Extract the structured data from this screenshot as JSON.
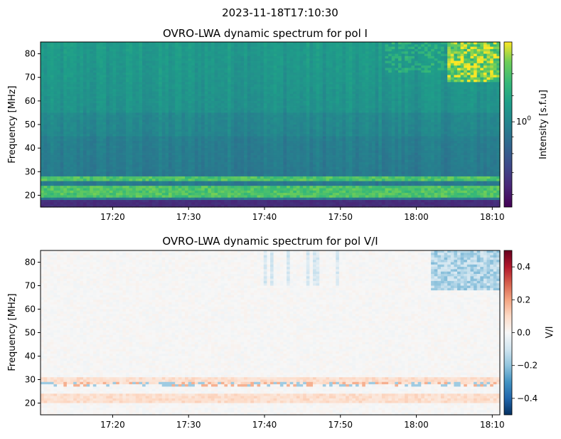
{
  "suptitle": "2023-11-18T17:10:30",
  "chart_data": [
    {
      "type": "heatmap",
      "title": "OVRO-LWA dynamic spectrum for pol I",
      "xlabel": "",
      "ylabel": "Frequency [MHz]",
      "x_ticks": [
        "17:20",
        "17:30",
        "17:40",
        "17:50",
        "18:00",
        "18:10"
      ],
      "x_tick_minutes": [
        20,
        30,
        40,
        50,
        60,
        70
      ],
      "xlim_minutes": [
        10.5,
        71.0
      ],
      "x_origin": "17:00",
      "y_ticks": [
        20,
        30,
        40,
        50,
        60,
        70,
        80
      ],
      "ylim": [
        15,
        85
      ],
      "colormap": "viridis",
      "colorbar": {
        "label": "Intensity [s.f.u]",
        "scale": "log",
        "ticks": [
          "10^0"
        ],
        "tick_value": 1.0,
        "range": [
          0.55,
          1.75
        ]
      },
      "features": {
        "bright_bands_mhz": [
          [
            19.5,
            21.5
          ],
          [
            22,
            24
          ],
          [
            26,
            28
          ]
        ],
        "dark_band_mhz": [
          15,
          18
        ],
        "background_level": 1.0,
        "bright_region": {
          "from_minutes": 64,
          "to_minutes": 71,
          "above_mhz": 68
        }
      }
    },
    {
      "type": "heatmap",
      "title": "OVRO-LWA dynamic spectrum for pol V/I",
      "xlabel": "",
      "ylabel": "Frequency [MHz]",
      "x_ticks": [
        "17:20",
        "17:30",
        "17:40",
        "17:50",
        "18:00",
        "18:10"
      ],
      "x_tick_minutes": [
        20,
        30,
        40,
        50,
        60,
        70
      ],
      "xlim_minutes": [
        10.5,
        71.0
      ],
      "x_origin": "17:00",
      "y_ticks": [
        20,
        30,
        40,
        50,
        60,
        70,
        80
      ],
      "ylim": [
        15,
        85
      ],
      "colormap": "RdBu_r",
      "colorbar": {
        "label": "V/I",
        "scale": "linear",
        "ticks": [
          "0.4",
          "0.2",
          "0.0",
          "−0.2",
          "−0.4"
        ],
        "tick_values": [
          0.4,
          0.2,
          0.0,
          -0.2,
          -0.4
        ],
        "range": [
          -0.5,
          0.5
        ]
      },
      "features": {
        "weak_positive_bands_mhz": [
          [
            20,
            24
          ],
          [
            28,
            31
          ]
        ],
        "negative_region": {
          "from_minutes": 62,
          "to_minutes": 71,
          "above_mhz": 68
        }
      }
    }
  ]
}
